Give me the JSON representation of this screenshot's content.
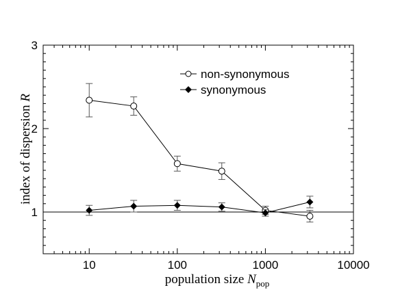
{
  "chart_data": {
    "type": "line",
    "xscale": "log",
    "xlim": [
      3,
      10000
    ],
    "ylim": [
      0.5,
      3
    ],
    "xticks": [
      10,
      100,
      1000,
      10000
    ],
    "xtick_labels": [
      "10",
      "100",
      "1000",
      "10000"
    ],
    "yticks": [
      1,
      2,
      3
    ],
    "ytick_labels": [
      "1",
      "2",
      "3"
    ],
    "xlabel": {
      "main": "population size ",
      "italic": "N",
      "sub": "pop"
    },
    "ylabel": {
      "main": "index of dispersion ",
      "italic": "R"
    },
    "reference_line": 1,
    "grid": false,
    "legend_position": "top-right",
    "series": [
      {
        "name": "non-synonymous",
        "marker": "open-circle",
        "color": "#000000",
        "points": [
          {
            "x": 10,
            "y": 2.34,
            "err": 0.2
          },
          {
            "x": 32,
            "y": 2.27,
            "err": 0.11
          },
          {
            "x": 100,
            "y": 1.58,
            "err": 0.09
          },
          {
            "x": 320,
            "y": 1.49,
            "err": 0.1
          },
          {
            "x": 1000,
            "y": 1.02,
            "err": 0.05
          },
          {
            "x": 3200,
            "y": 0.95,
            "err": 0.07
          }
        ]
      },
      {
        "name": "synonymous",
        "marker": "filled-diamond",
        "color": "#000000",
        "points": [
          {
            "x": 10,
            "y": 1.02,
            "err": 0.06
          },
          {
            "x": 32,
            "y": 1.07,
            "err": 0.07
          },
          {
            "x": 100,
            "y": 1.08,
            "err": 0.06
          },
          {
            "x": 320,
            "y": 1.06,
            "err": 0.05
          },
          {
            "x": 1000,
            "y": 0.99,
            "err": 0.04
          },
          {
            "x": 3200,
            "y": 1.12,
            "err": 0.07
          }
        ]
      }
    ]
  }
}
